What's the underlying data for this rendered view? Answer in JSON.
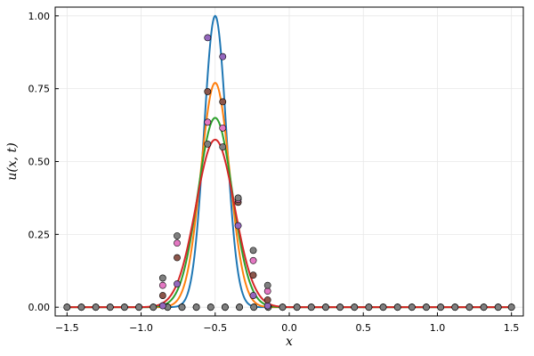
{
  "chart_data": {
    "type": "line",
    "xlabel": "x",
    "ylabel": "u(x, t)",
    "xlim": [
      -1.58,
      1.58
    ],
    "ylim": [
      -0.03,
      1.03
    ],
    "xticks": [
      -1.5,
      -1.0,
      -0.5,
      0.0,
      0.5,
      1.0,
      1.5
    ],
    "xtick_labels": [
      "−1.5",
      "−1.0",
      "−0.5",
      "0.0",
      "0.5",
      "1.0",
      "1.5"
    ],
    "yticks": [
      0,
      0.25,
      0.5,
      0.75,
      1.0
    ],
    "ytick_labels": [
      "0.00",
      "0.25",
      "0.50",
      "0.75",
      "1.00"
    ],
    "grid": true,
    "legend": "none",
    "curves": [
      {
        "color": "#1f77b4",
        "center": -0.5,
        "peak": 1.0,
        "width": 0.075
      },
      {
        "color": "#ff7f0e",
        "center": -0.5,
        "peak": 0.77,
        "width": 0.097
      },
      {
        "color": "#2ca02c",
        "center": -0.5,
        "peak": 0.65,
        "width": 0.116
      },
      {
        "color": "#d62728",
        "center": -0.5,
        "peak": 0.575,
        "width": 0.13
      }
    ],
    "point_series": [
      {
        "color": "#9467bd",
        "x": [
          -0.854,
          -0.757,
          -0.551,
          -0.449,
          -0.345,
          -0.243,
          -0.146
        ],
        "y": [
          0.005,
          0.08,
          0.925,
          0.86,
          0.28,
          0.04,
          0.005
        ]
      },
      {
        "color": "#8c564b",
        "x": [
          -0.854,
          -0.757,
          -0.551,
          -0.449,
          -0.345,
          -0.243,
          -0.146
        ],
        "y": [
          0.04,
          0.17,
          0.74,
          0.705,
          0.36,
          0.11,
          0.025
        ]
      },
      {
        "color": "#e377c2",
        "x": [
          -0.854,
          -0.757,
          -0.551,
          -0.449,
          -0.345,
          -0.243,
          -0.146
        ],
        "y": [
          0.075,
          0.22,
          0.635,
          0.615,
          0.37,
          0.16,
          0.055
        ]
      },
      {
        "color": "#7f7f7f",
        "x": [
          -0.854,
          -0.757,
          -0.551,
          -0.449,
          -0.345,
          -0.243,
          -0.146
        ],
        "y": [
          0.1,
          0.245,
          0.56,
          0.55,
          0.375,
          0.195,
          0.075
        ]
      }
    ],
    "grid_points": {
      "x": [
        -1.5,
        -1.403,
        -1.306,
        -1.209,
        -1.112,
        -1.015,
        -0.918,
        -0.821,
        -0.724,
        -0.627,
        -0.53,
        -0.433,
        -0.336,
        -0.239,
        -0.142,
        -0.045,
        0.052,
        0.149,
        0.246,
        0.343,
        0.44,
        0.537,
        0.634,
        0.731,
        0.828,
        0.925,
        1.022,
        1.119,
        1.216,
        1.313,
        1.41,
        1.5
      ],
      "series_colors": [
        "#9467bd",
        "#8c564b",
        "#e377c2",
        "#7f7f7f"
      ]
    }
  }
}
